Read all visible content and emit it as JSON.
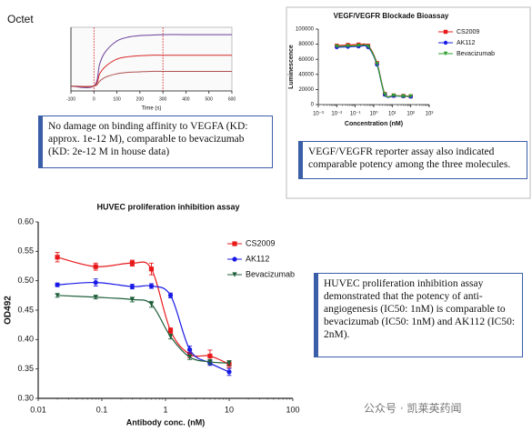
{
  "chart_data": [
    {
      "type": "line",
      "title": "Octet",
      "xlabel": "Time (s)",
      "x": [
        -100,
        0,
        25,
        50,
        100,
        150,
        200,
        250,
        300,
        400,
        500,
        600
      ],
      "series": [
        {
          "color": "#6a3d9a",
          "values": [
            0,
            0,
            0.45,
            0.7,
            0.92,
            1.0,
            1.03,
            1.04,
            1.05,
            1.05,
            1.05,
            1.05
          ]
        },
        {
          "color": "#d62728",
          "values": [
            0,
            0,
            0.25,
            0.4,
            0.55,
            0.6,
            0.62,
            0.63,
            0.63,
            0.63,
            0.63,
            0.63
          ]
        },
        {
          "color": "#b05050",
          "values": [
            0,
            0,
            0.1,
            0.18,
            0.25,
            0.28,
            0.29,
            0.3,
            0.3,
            0.3,
            0.3,
            0.3
          ]
        }
      ],
      "xlim": [
        -100,
        600
      ],
      "xticks": [
        -100,
        0,
        100,
        200,
        300,
        400,
        500,
        600
      ],
      "ylim": [
        -0.1,
        1.2
      ]
    },
    {
      "type": "scatter",
      "title": "VEGF/VEGFR Blockade Bioassay",
      "xlabel": "Concentration (nM)",
      "ylabel": "Luminescence",
      "xscale": "log",
      "legend": "upper right",
      "x": [
        0.01,
        0.04,
        0.15,
        0.5,
        1.5,
        4,
        12,
        40,
        100
      ],
      "series": [
        {
          "name": "CS2009",
          "color": "#e8191b",
          "marker": "square",
          "values": [
            78000,
            79000,
            79500,
            78000,
            55000,
            14000,
            12000,
            11500,
            11000
          ]
        },
        {
          "name": "AK112",
          "color": "#1a1ae6",
          "marker": "circle",
          "values": [
            76000,
            76500,
            77000,
            76000,
            53000,
            13000,
            11500,
            11000,
            10500
          ]
        },
        {
          "name": "Bevacizumab",
          "color": "#2ca02c",
          "marker": "triangle",
          "values": [
            77000,
            77500,
            78000,
            77000,
            54000,
            13500,
            12000,
            11000,
            11000
          ]
        }
      ],
      "xlim": [
        0.001,
        1000
      ],
      "xticks": [
        {
          "value": 0.001,
          "label": "10⁻³"
        },
        {
          "value": 0.01,
          "label": "10⁻²"
        },
        {
          "value": 0.1,
          "label": "10⁻¹"
        },
        {
          "value": 1,
          "label": "10⁰"
        },
        {
          "value": 10,
          "label": "10¹"
        },
        {
          "value": 100,
          "label": "10²"
        },
        {
          "value": 1000,
          "label": "10³"
        }
      ],
      "ylim": [
        0,
        100000
      ],
      "yticks": [
        0,
        20000,
        40000,
        60000,
        80000,
        100000
      ]
    },
    {
      "type": "scatter",
      "title": "HUVEC proliferation inhibition assay",
      "xlabel": "Antibody conc. (nM)",
      "ylabel": "OD492",
      "xscale": "log",
      "legend": "upper right",
      "x": [
        0.02,
        0.08,
        0.3,
        0.6,
        1.2,
        2.4,
        5,
        10
      ],
      "series": [
        {
          "name": "CS2009",
          "color": "#e8191b",
          "marker": "square",
          "values": [
            0.54,
            0.524,
            0.53,
            0.52,
            0.415,
            0.375,
            0.372,
            0.358
          ],
          "errors": [
            0.008,
            0.006,
            0.005,
            0.01,
            0.005,
            0.006,
            0.01,
            0.006
          ]
        },
        {
          "name": "AK112",
          "color": "#1a1ae6",
          "marker": "circle",
          "values": [
            0.493,
            0.497,
            0.49,
            0.491,
            0.475,
            0.383,
            0.36,
            0.345
          ],
          "errors": [
            0.003,
            0.006,
            0.004,
            0.004,
            0.004,
            0.006,
            0.004,
            0.006
          ]
        },
        {
          "name": "Bevacizumab",
          "color": "#1f5f3a",
          "marker": "triangle",
          "values": [
            0.475,
            0.472,
            0.468,
            0.46,
            0.405,
            0.37,
            0.362,
            0.36
          ],
          "errors": [
            0.003,
            0.003,
            0.004,
            0.005,
            0.004,
            0.004,
            0.004,
            0.004
          ]
        }
      ],
      "xlim": [
        0.01,
        100
      ],
      "xticks": [
        0.01,
        0.1,
        1,
        10,
        100
      ],
      "ylim": [
        0.3,
        0.6
      ],
      "yticks": [
        {
          "value": 0.3,
          "label": "0.30"
        },
        {
          "value": 0.35,
          "label": "0.35"
        },
        {
          "value": 0.4,
          "label": "0.40"
        },
        {
          "value": 0.45,
          "label": "0.45"
        },
        {
          "value": 0.5,
          "label": "0.50"
        },
        {
          "value": 0.55,
          "label": "0.55"
        },
        {
          "value": 0.6,
          "label": "0.60"
        }
      ]
    }
  ],
  "captions": [
    "No damage on binding affinity to VEGFA (KD: approx. 1e-12 M), comparable to bevacizumab (KD: 2e-12 M in house data)",
    "VEGF/VEGFR reporter assay also indicated comparable potency among the three molecules.",
    "HUVEC proliferation inhibition assay demonstrated that the potency of anti-angiogenesis (IC50: 1nM) is comparable to bevacizumab (IC50: 1nM) and AK112 (IC50: 2nM)."
  ],
  "watermark": "公众号 · 凯莱英药闻"
}
